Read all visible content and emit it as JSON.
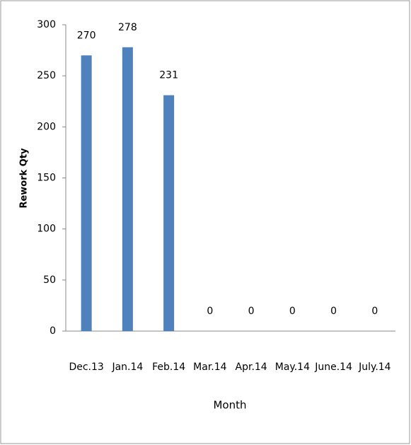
{
  "chart_data": {
    "type": "bar",
    "x_label": "Month",
    "y_label": "Rework Qty",
    "categories": [
      "Dec.13",
      "Jan.14",
      "Feb.14",
      "Mar.14",
      "Apr.14",
      "May.14",
      "June.14",
      "July.14"
    ],
    "values": [
      270,
      278,
      231,
      0,
      0,
      0,
      0,
      0
    ],
    "color": "#4f81bd",
    "ylim": [
      0,
      300
    ],
    "yticks": [
      0,
      50,
      100,
      150,
      200,
      250,
      300
    ],
    "grid": false
  }
}
